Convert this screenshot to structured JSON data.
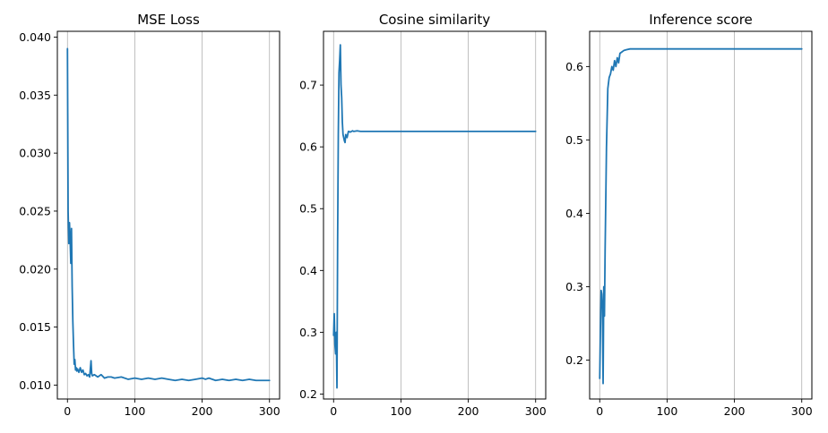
{
  "colors": {
    "series": "#1f77b4",
    "grid": "#b0b0b0"
  },
  "chart_data": [
    {
      "type": "line",
      "title": "MSE Loss",
      "xlabel": "",
      "ylabel": "",
      "grid": "x",
      "xlim": [
        -15,
        315
      ],
      "ylim": [
        0.0088,
        0.0405
      ],
      "xticks": [
        0,
        100,
        200,
        300
      ],
      "xtick_labels": [
        "0",
        "100",
        "200",
        "300"
      ],
      "yticks": [
        0.01,
        0.015,
        0.02,
        0.025,
        0.03,
        0.035,
        0.04
      ],
      "ytick_labels": [
        "0.010",
        "0.015",
        "0.020",
        "0.025",
        "0.030",
        "0.035",
        "0.040"
      ],
      "series": [
        {
          "x": [
            0,
            1,
            2,
            3,
            4,
            5,
            6,
            7,
            8,
            9,
            10,
            11,
            12,
            13,
            14,
            15,
            17,
            19,
            21,
            23,
            25,
            27,
            29,
            31,
            33,
            35,
            36,
            37,
            40,
            45,
            50,
            55,
            60,
            65,
            70,
            80,
            90,
            100,
            110,
            120,
            130,
            140,
            150,
            160,
            170,
            180,
            190,
            200,
            205,
            210,
            220,
            230,
            240,
            250,
            260,
            270,
            280,
            290,
            300
          ],
          "y": [
            0.039,
            0.025,
            0.0222,
            0.024,
            0.0225,
            0.0205,
            0.0235,
            0.0185,
            0.0155,
            0.0135,
            0.0118,
            0.0122,
            0.0113,
            0.0115,
            0.0112,
            0.0114,
            0.0111,
            0.0115,
            0.0111,
            0.0113,
            0.0109,
            0.011,
            0.0108,
            0.0109,
            0.0107,
            0.0121,
            0.011,
            0.0108,
            0.0109,
            0.0107,
            0.0109,
            0.0106,
            0.0107,
            0.0107,
            0.0106,
            0.0107,
            0.0105,
            0.0106,
            0.0105,
            0.0106,
            0.0105,
            0.0106,
            0.0105,
            0.0104,
            0.0105,
            0.0104,
            0.0105,
            0.0106,
            0.0105,
            0.0106,
            0.0104,
            0.0105,
            0.0104,
            0.0105,
            0.0104,
            0.0105,
            0.0104,
            0.0104,
            0.0104
          ]
        }
      ]
    },
    {
      "type": "line",
      "title": "Cosine similarity",
      "xlabel": "",
      "ylabel": "",
      "grid": "x",
      "xlim": [
        -15,
        315
      ],
      "ylim": [
        0.192,
        0.787
      ],
      "xticks": [
        0,
        100,
        200,
        300
      ],
      "xtick_labels": [
        "0",
        "100",
        "200",
        "300"
      ],
      "yticks": [
        0.2,
        0.3,
        0.4,
        0.5,
        0.6,
        0.7
      ],
      "ytick_labels": [
        "0.2",
        "0.3",
        "0.4",
        "0.5",
        "0.6",
        "0.7"
      ],
      "series": [
        {
          "x": [
            0,
            1,
            2,
            3,
            4,
            5,
            6,
            7,
            8,
            9,
            10,
            11,
            12,
            13,
            14,
            15,
            16,
            17,
            18,
            20,
            22,
            25,
            28,
            30,
            35,
            40,
            50,
            60,
            100,
            150,
            200,
            250,
            300
          ],
          "y": [
            0.295,
            0.33,
            0.28,
            0.265,
            0.3,
            0.21,
            0.45,
            0.62,
            0.72,
            0.74,
            0.765,
            0.7,
            0.68,
            0.64,
            0.62,
            0.615,
            0.61,
            0.607,
            0.62,
            0.615,
            0.625,
            0.624,
            0.626,
            0.625,
            0.626,
            0.625,
            0.625,
            0.625,
            0.625,
            0.625,
            0.625,
            0.625,
            0.625
          ]
        }
      ]
    },
    {
      "type": "line",
      "title": "Inference score",
      "xlabel": "",
      "ylabel": "",
      "grid": "x",
      "xlim": [
        -15,
        315
      ],
      "ylim": [
        0.147,
        0.648
      ],
      "xticks": [
        0,
        100,
        200,
        300
      ],
      "xtick_labels": [
        "0",
        "100",
        "200",
        "300"
      ],
      "yticks": [
        0.2,
        0.3,
        0.4,
        0.5,
        0.6
      ],
      "ytick_labels": [
        "0.2",
        "0.3",
        "0.4",
        "0.5",
        "0.6"
      ],
      "series": [
        {
          "x": [
            0,
            1,
            2,
            3,
            4,
            5,
            6,
            7,
            8,
            9,
            10,
            12,
            14,
            16,
            18,
            20,
            22,
            24,
            26,
            28,
            30,
            33,
            36,
            40,
            45,
            50,
            60,
            100,
            150,
            200,
            250,
            300
          ],
          "y": [
            0.175,
            0.24,
            0.295,
            0.29,
            0.27,
            0.168,
            0.3,
            0.26,
            0.35,
            0.42,
            0.49,
            0.57,
            0.585,
            0.59,
            0.6,
            0.595,
            0.608,
            0.6,
            0.612,
            0.605,
            0.618,
            0.62,
            0.622,
            0.623,
            0.624,
            0.624,
            0.624,
            0.624,
            0.624,
            0.624,
            0.624,
            0.624
          ]
        }
      ]
    }
  ]
}
